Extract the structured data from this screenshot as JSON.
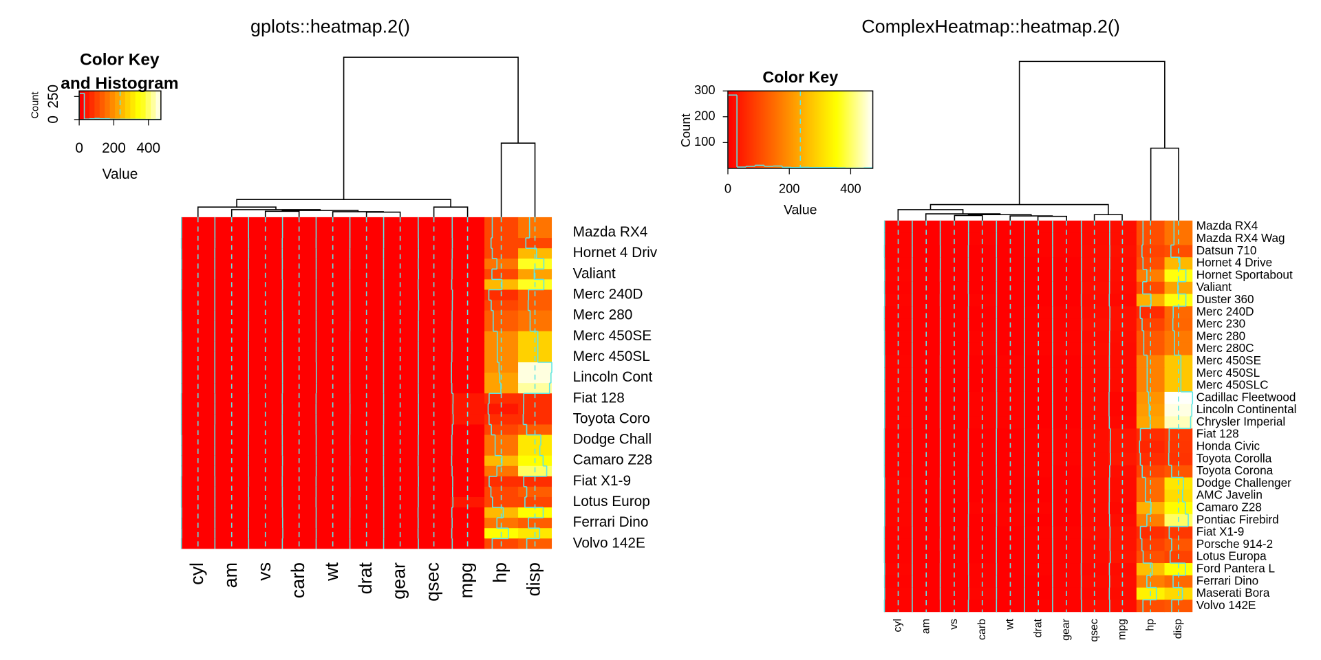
{
  "chart_data": [
    {
      "type": "heatmap",
      "title": "gplots::heatmap.2()",
      "columns": [
        "cyl",
        "am",
        "vs",
        "carb",
        "wt",
        "drat",
        "gear",
        "qsec",
        "mpg",
        "hp",
        "disp"
      ],
      "rows": [
        null,
        "Mazda RX4",
        null,
        "Hornet 4 Driv",
        null,
        "Valiant",
        null,
        "Merc 240D",
        null,
        "Merc 280",
        null,
        "Merc 450SE",
        null,
        "Merc 450SL",
        null,
        "Lincoln Cont",
        null,
        "Fiat 128",
        null,
        "Toyota Coro",
        null,
        "Dodge Chall",
        null,
        "Camaro Z28",
        null,
        "Fiat X1-9",
        null,
        "Lotus Europ",
        null,
        "Ferrari Dino",
        null,
        "Volvo 142E"
      ],
      "values": [
        [
          6,
          1,
          0,
          4,
          2.62,
          3.9,
          4,
          16.46,
          21,
          110,
          160
        ],
        [
          6,
          1,
          0,
          4,
          2.875,
          3.9,
          4,
          17.02,
          21,
          110,
          160
        ],
        [
          4,
          1,
          1,
          1,
          2.32,
          3.85,
          4,
          18.61,
          22.8,
          93,
          108
        ],
        [
          6,
          0,
          1,
          1,
          3.215,
          3.08,
          3,
          19.44,
          21.4,
          110,
          258
        ],
        [
          8,
          0,
          0,
          2,
          3.44,
          3.15,
          3,
          17.02,
          18.7,
          175,
          360
        ],
        [
          6,
          0,
          1,
          1,
          3.46,
          2.76,
          3,
          20.22,
          18.1,
          105,
          225
        ],
        [
          8,
          0,
          0,
          4,
          3.57,
          3.21,
          3,
          15.84,
          14.3,
          245,
          360
        ],
        [
          4,
          0,
          1,
          2,
          3.19,
          3.69,
          4,
          20,
          24.4,
          62,
          146.7
        ],
        [
          4,
          0,
          1,
          2,
          3.15,
          3.92,
          4,
          22.9,
          22.8,
          95,
          140.8
        ],
        [
          6,
          0,
          1,
          4,
          3.44,
          3.92,
          4,
          18.3,
          19.2,
          123,
          167.6
        ],
        [
          6,
          0,
          1,
          4,
          3.44,
          3.92,
          4,
          18.9,
          17.8,
          123,
          167.6
        ],
        [
          8,
          0,
          0,
          3,
          4.07,
          3.07,
          3,
          17.4,
          16.4,
          180,
          275.8
        ],
        [
          8,
          0,
          0,
          3,
          3.73,
          3.07,
          3,
          17.6,
          17.3,
          180,
          275.8
        ],
        [
          8,
          0,
          0,
          3,
          3.78,
          3.07,
          3,
          18,
          15.2,
          180,
          275.8
        ],
        [
          8,
          0,
          0,
          4,
          5.25,
          2.93,
          3,
          17.98,
          10.4,
          205,
          472
        ],
        [
          8,
          0,
          0,
          4,
          5.424,
          3,
          3,
          17.82,
          10.4,
          215,
          460
        ],
        [
          8,
          0,
          0,
          4,
          5.345,
          3.23,
          3,
          17.42,
          14.7,
          230,
          440
        ],
        [
          4,
          1,
          1,
          1,
          2.2,
          4.08,
          4,
          19.47,
          32.4,
          66,
          78.7
        ],
        [
          4,
          1,
          1,
          2,
          1.615,
          4.93,
          4,
          18.52,
          30.4,
          52,
          75.7
        ],
        [
          4,
          1,
          1,
          1,
          1.835,
          4.22,
          4,
          19.9,
          33.9,
          65,
          71.1
        ],
        [
          4,
          0,
          1,
          1,
          2.465,
          3.7,
          3,
          20.01,
          21.5,
          97,
          120.1
        ],
        [
          8,
          0,
          0,
          2,
          3.52,
          2.76,
          3,
          16.87,
          15.5,
          150,
          318
        ],
        [
          8,
          0,
          0,
          2,
          3.435,
          3.15,
          3,
          17.3,
          15.2,
          150,
          304
        ],
        [
          8,
          0,
          0,
          4,
          3.84,
          3.73,
          3,
          15.41,
          13.3,
          245,
          350
        ],
        [
          8,
          0,
          0,
          2,
          3.845,
          3.08,
          3,
          17.05,
          19.2,
          175,
          400
        ],
        [
          4,
          1,
          1,
          1,
          1.935,
          4.08,
          4,
          18.9,
          27.3,
          66,
          79
        ],
        [
          4,
          1,
          0,
          2,
          2.14,
          4.43,
          5,
          16.7,
          26,
          91,
          120.3
        ],
        [
          4,
          1,
          1,
          2,
          1.513,
          3.77,
          5,
          16.9,
          30.4,
          113,
          95.1
        ],
        [
          8,
          1,
          0,
          4,
          3.17,
          4.22,
          5,
          14.5,
          15.8,
          264,
          351
        ],
        [
          6,
          1,
          0,
          6,
          2.77,
          3.62,
          5,
          15.5,
          19.7,
          175,
          145
        ],
        [
          8,
          1,
          0,
          8,
          3.57,
          3.54,
          5,
          14.6,
          15,
          335,
          301
        ],
        [
          4,
          1,
          1,
          2,
          2.78,
          4.11,
          4,
          18.6,
          21.4,
          109,
          121
        ]
      ],
      "color_steps": 16,
      "vline": 236,
      "trace_color": "#5ee6e6",
      "color_key": {
        "title": [
          "Color Key",
          "and Histogram"
        ],
        "xlabel": "Value",
        "ylabel": "Count",
        "xlim": [
          0,
          472
        ],
        "xticks": [
          0,
          200,
          400
        ],
        "ylim": [
          0,
          310
        ],
        "yticks": [
          0,
          250
        ],
        "bins": [
          0,
          29.5,
          59,
          88.5,
          118,
          147.5,
          177,
          206.5,
          236,
          265.5,
          295,
          324.5,
          354,
          383.5,
          413,
          442.5,
          472
        ],
        "counts": [
          284,
          5,
          8,
          12,
          8,
          9,
          4,
          3,
          4,
          3,
          3,
          3,
          2,
          1,
          1,
          2
        ]
      }
    },
    {
      "type": "heatmap",
      "title": "ComplexHeatmap::heatmap.2()",
      "columns": [
        "cyl",
        "am",
        "vs",
        "carb",
        "wt",
        "drat",
        "gear",
        "qsec",
        "mpg",
        "hp",
        "disp"
      ],
      "rows": [
        "Mazda RX4",
        "Mazda RX4 Wag",
        "Datsun 710",
        "Hornet 4 Drive",
        "Hornet Sportabout",
        "Valiant",
        "Duster 360",
        "Merc 240D",
        "Merc 230",
        "Merc 280",
        "Merc 280C",
        "Merc 450SE",
        "Merc 450SL",
        "Merc 450SLC",
        "Cadillac Fleetwood",
        "Lincoln Continental",
        "Chrysler Imperial",
        "Fiat 128",
        "Honda Civic",
        "Toyota Corolla",
        "Toyota Corona",
        "Dodge Challenger",
        "AMC Javelin",
        "Camaro Z28",
        "Pontiac Firebird",
        "Fiat X1-9",
        "Porsche 914-2",
        "Lotus Europa",
        "Ford Pantera L",
        "Ferrari Dino",
        "Maserati Bora",
        "Volvo 142E"
      ],
      "values": [
        [
          6,
          1,
          0,
          4,
          2.62,
          3.9,
          4,
          16.46,
          21,
          110,
          160
        ],
        [
          6,
          1,
          0,
          4,
          2.875,
          3.9,
          4,
          17.02,
          21,
          110,
          160
        ],
        [
          4,
          1,
          1,
          1,
          2.32,
          3.85,
          4,
          18.61,
          22.8,
          93,
          108
        ],
        [
          6,
          0,
          1,
          1,
          3.215,
          3.08,
          3,
          19.44,
          21.4,
          110,
          258
        ],
        [
          8,
          0,
          0,
          2,
          3.44,
          3.15,
          3,
          17.02,
          18.7,
          175,
          360
        ],
        [
          6,
          0,
          1,
          1,
          3.46,
          2.76,
          3,
          20.22,
          18.1,
          105,
          225
        ],
        [
          8,
          0,
          0,
          4,
          3.57,
          3.21,
          3,
          15.84,
          14.3,
          245,
          360
        ],
        [
          4,
          0,
          1,
          2,
          3.19,
          3.69,
          4,
          20,
          24.4,
          62,
          146.7
        ],
        [
          4,
          0,
          1,
          2,
          3.15,
          3.92,
          4,
          22.9,
          22.8,
          95,
          140.8
        ],
        [
          6,
          0,
          1,
          4,
          3.44,
          3.92,
          4,
          18.3,
          19.2,
          123,
          167.6
        ],
        [
          6,
          0,
          1,
          4,
          3.44,
          3.92,
          4,
          18.9,
          17.8,
          123,
          167.6
        ],
        [
          8,
          0,
          0,
          3,
          4.07,
          3.07,
          3,
          17.4,
          16.4,
          180,
          275.8
        ],
        [
          8,
          0,
          0,
          3,
          3.73,
          3.07,
          3,
          17.6,
          17.3,
          180,
          275.8
        ],
        [
          8,
          0,
          0,
          3,
          3.78,
          3.07,
          3,
          18,
          15.2,
          180,
          275.8
        ],
        [
          8,
          0,
          0,
          4,
          5.25,
          2.93,
          3,
          17.98,
          10.4,
          205,
          472
        ],
        [
          8,
          0,
          0,
          4,
          5.424,
          3,
          3,
          17.82,
          10.4,
          215,
          460
        ],
        [
          8,
          0,
          0,
          4,
          5.345,
          3.23,
          3,
          17.42,
          14.7,
          230,
          440
        ],
        [
          4,
          1,
          1,
          1,
          2.2,
          4.08,
          4,
          19.47,
          32.4,
          66,
          78.7
        ],
        [
          4,
          1,
          1,
          2,
          1.615,
          4.93,
          4,
          18.52,
          30.4,
          52,
          75.7
        ],
        [
          4,
          1,
          1,
          1,
          1.835,
          4.22,
          4,
          19.9,
          33.9,
          65,
          71.1
        ],
        [
          4,
          0,
          1,
          1,
          2.465,
          3.7,
          3,
          20.01,
          21.5,
          97,
          120.1
        ],
        [
          8,
          0,
          0,
          2,
          3.52,
          2.76,
          3,
          16.87,
          15.5,
          150,
          318
        ],
        [
          8,
          0,
          0,
          2,
          3.435,
          3.15,
          3,
          17.3,
          15.2,
          150,
          304
        ],
        [
          8,
          0,
          0,
          4,
          3.84,
          3.73,
          3,
          15.41,
          13.3,
          245,
          350
        ],
        [
          8,
          0,
          0,
          2,
          3.845,
          3.08,
          3,
          17.05,
          19.2,
          175,
          400
        ],
        [
          4,
          1,
          1,
          1,
          1.935,
          4.08,
          4,
          18.9,
          27.3,
          66,
          79
        ],
        [
          4,
          1,
          0,
          2,
          2.14,
          4.43,
          5,
          16.7,
          26,
          91,
          120.3
        ],
        [
          4,
          1,
          1,
          2,
          1.513,
          3.77,
          5,
          16.9,
          30.4,
          113,
          95.1
        ],
        [
          8,
          1,
          0,
          4,
          3.17,
          4.22,
          5,
          14.5,
          15.8,
          264,
          351
        ],
        [
          6,
          1,
          0,
          6,
          2.77,
          3.62,
          5,
          15.5,
          19.7,
          175,
          145
        ],
        [
          8,
          1,
          0,
          8,
          3.57,
          3.54,
          5,
          14.6,
          15,
          335,
          301
        ],
        [
          4,
          1,
          1,
          2,
          2.78,
          4.11,
          4,
          18.6,
          21.4,
          109,
          121
        ]
      ],
      "color_steps": 128,
      "vline": 236,
      "trace_color": "#5ee6e6",
      "color_key": {
        "title": [
          "Color Key"
        ],
        "xlabel": "Value",
        "ylabel": "Count",
        "xlim": [
          0,
          472
        ],
        "xticks": [
          0,
          200,
          400
        ],
        "ylim": [
          0,
          300
        ],
        "yticks": [
          100,
          200,
          300
        ],
        "bins": [
          0,
          29.5,
          59,
          88.5,
          118,
          147.5,
          177,
          206.5,
          236,
          265.5,
          295,
          324.5,
          354,
          383.5,
          413,
          442.5,
          472
        ],
        "counts": [
          284,
          5,
          8,
          12,
          8,
          9,
          4,
          3,
          4,
          3,
          3,
          3,
          2,
          1,
          1,
          2
        ]
      }
    }
  ]
}
